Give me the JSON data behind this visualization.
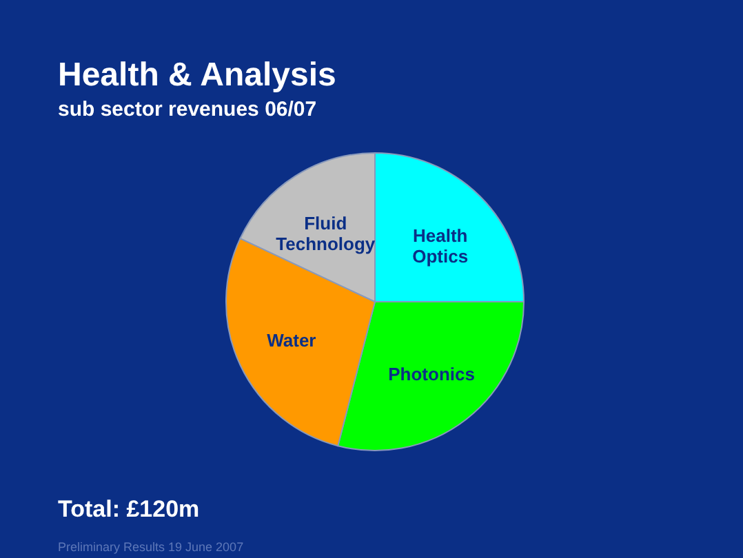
{
  "chart_data": {
    "type": "pie",
    "title": "Health & Analysis",
    "subtitle": "sub sector revenues 06/07",
    "categories": [
      "Health Optics",
      "Photonics",
      "Water",
      "Fluid Technology"
    ],
    "values": [
      25,
      29,
      28,
      18
    ],
    "colors": [
      "#00ffff",
      "#00ff00",
      "#ff9900",
      "#c0c0c0"
    ],
    "annotations": [
      "Total: £120m",
      "Preliminary Results 19 June 2007"
    ]
  }
}
